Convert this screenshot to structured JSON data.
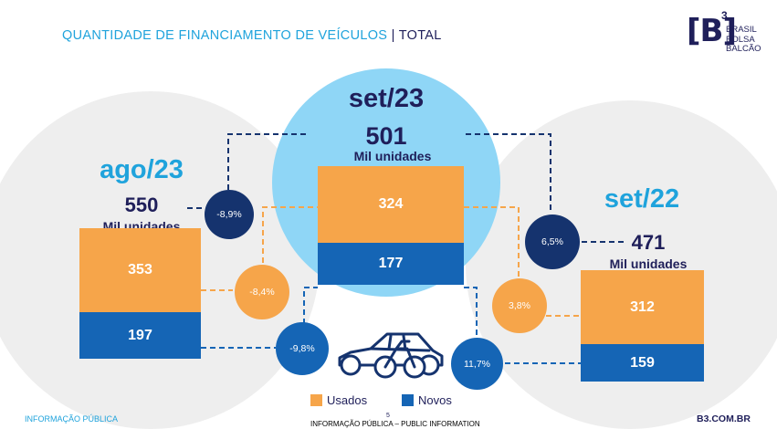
{
  "header": {
    "title_main": "QUANTIDADE DE FINANCIAMENTO DE VEÍCULOS",
    "title_sep": " | ",
    "title_sub": "TOTAL"
  },
  "logo": {
    "mark": "[B]",
    "sup": "3",
    "line1": "BRASIL",
    "line2": "BOLSA",
    "line3": "BALCÃO"
  },
  "chart_data": {
    "type": "bar",
    "stacked": true,
    "categories": [
      "ago/23",
      "set/23",
      "set/22"
    ],
    "unit_label": "Mil unidades",
    "totals": [
      550,
      501,
      471
    ],
    "series": [
      {
        "name": "Usados",
        "values": [
          353,
          324,
          312
        ],
        "color": "#f6a54a"
      },
      {
        "name": "Novos",
        "values": [
          197,
          177,
          159
        ],
        "color": "#1565b5"
      }
    ],
    "comparisons": {
      "vs_ago23": {
        "total": "-8,9%",
        "usados": "-8,4%",
        "novos": "-9,8%"
      },
      "vs_set22": {
        "total": "6,5%",
        "usados": "3,8%",
        "novos": "11,7%"
      }
    },
    "colors": {
      "period_left": "#1fa3dc",
      "period_center": "#1f1f5a",
      "period_right": "#1fa3dc"
    }
  },
  "legend": [
    {
      "label": "Usados",
      "color": "#f6a54a"
    },
    {
      "label": "Novos",
      "color": "#1565b5"
    }
  ],
  "footer": {
    "left": "INFORMAÇÃO PÚBLICA",
    "page": "5",
    "center": "INFORMAÇÃO PÚBLICA – PUBLIC INFORMATION",
    "right": "B3.COM.BR"
  }
}
